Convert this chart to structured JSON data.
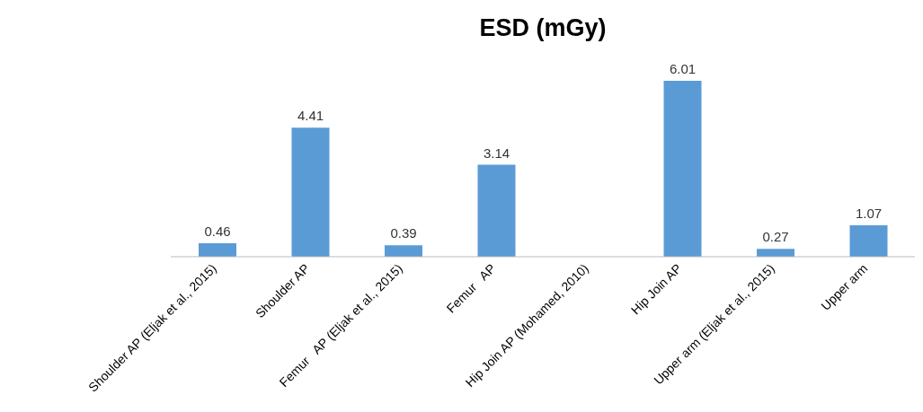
{
  "chart_data": {
    "type": "bar",
    "title": "ESD (mGy)",
    "categories": [
      "Shoulder AP (Eljak et al., 2015)",
      "Shoulder AP",
      "Femur   AP (Eljak et al., 2015)",
      "Femur   AP",
      "Hip Join AP (Mohamed, 2010)",
      "Hip Join AP",
      "Upper arm (Eljak et al., 2015)",
      "Upper arm"
    ],
    "values": [
      0.46,
      4.41,
      0.39,
      3.14,
      null,
      6.01,
      0.27,
      1.07
    ],
    "color": "#5b9bd5",
    "data_labels": true
  }
}
